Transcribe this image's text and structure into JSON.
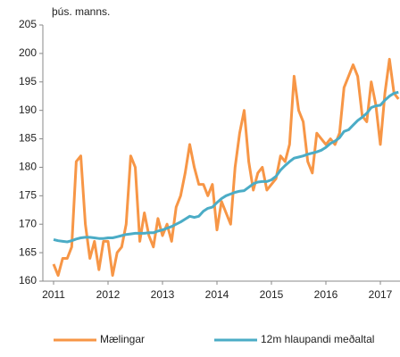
{
  "chart_data": {
    "type": "line",
    "y_label": "þús. manns.",
    "categories": [
      "2011",
      null,
      null,
      null,
      null,
      null,
      null,
      null,
      null,
      null,
      null,
      null,
      "2012",
      null,
      null,
      null,
      null,
      null,
      null,
      null,
      null,
      null,
      null,
      null,
      "2013",
      null,
      null,
      null,
      null,
      null,
      null,
      null,
      null,
      null,
      null,
      null,
      "2014",
      null,
      null,
      null,
      null,
      null,
      null,
      null,
      null,
      null,
      null,
      null,
      "2015",
      null,
      null,
      null,
      null,
      null,
      null,
      null,
      null,
      null,
      null,
      null,
      "2016",
      null,
      null,
      null,
      null,
      null,
      null,
      null,
      null,
      null,
      null,
      null,
      "2017",
      null,
      null,
      null,
      null
    ],
    "series": [
      {
        "name": "Mælingar",
        "color": "#f79646",
        "values": [
          163,
          161,
          164,
          164,
          166,
          181,
          182,
          170,
          164,
          167,
          162,
          167,
          167,
          161,
          165,
          166,
          170,
          182,
          180,
          167,
          172,
          168,
          166,
          171,
          168,
          170,
          167,
          173,
          175,
          179,
          184,
          180,
          177,
          177,
          175,
          177,
          169,
          174,
          172,
          170,
          180,
          186,
          190,
          181,
          176,
          179,
          180,
          176,
          177,
          178,
          182,
          181,
          184,
          196,
          190,
          188,
          181,
          179,
          186,
          185,
          184,
          185,
          184,
          186,
          194,
          196,
          198,
          196,
          189,
          188,
          195,
          191,
          184,
          193,
          199,
          193,
          192
        ]
      },
      {
        "name": "12m hlaupandi meðaltal",
        "color": "#4bacc6",
        "values": [
          167.3,
          167.1,
          167.0,
          166.9,
          167.1,
          167.4,
          167.6,
          167.7,
          167.7,
          167.6,
          167.5,
          167.5,
          167.6,
          167.6,
          167.8,
          168.0,
          168.2,
          168.3,
          168.4,
          168.4,
          168.4,
          168.5,
          168.5,
          168.8,
          169.0,
          169.3,
          169.6,
          170.0,
          170.4,
          170.9,
          171.4,
          171.2,
          171.4,
          172.3,
          172.8,
          173.0,
          173.8,
          174.5,
          175.0,
          175.3,
          175.6,
          175.8,
          175.9,
          176.5,
          177.1,
          177.4,
          177.5,
          177.5,
          177.8,
          178.4,
          179.5,
          180.3,
          181.0,
          181.6,
          181.8,
          182.0,
          182.3,
          182.5,
          182.7,
          183.0,
          183.5,
          184.2,
          184.6,
          185.2,
          186.3,
          186.6,
          187.4,
          188.2,
          188.8,
          189.5,
          190.5,
          190.8,
          190.9,
          191.8,
          192.5,
          193.0,
          193.2
        ]
      }
    ],
    "ylim": [
      160,
      205
    ],
    "yticks": [
      160,
      165,
      170,
      175,
      180,
      185,
      190,
      195,
      200,
      205
    ],
    "grid": false,
    "legend": "bottom"
  }
}
